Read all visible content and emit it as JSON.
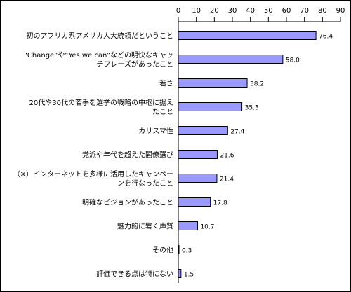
{
  "chart_data": {
    "type": "bar",
    "orientation": "horizontal",
    "title": "",
    "xlabel": "",
    "ylabel": "",
    "xlim": [
      0,
      90
    ],
    "ticks": [
      0,
      10,
      20,
      30,
      40,
      50,
      60,
      70,
      80,
      90
    ],
    "tick_labels": [
      "0",
      "10",
      "20",
      "30",
      "40",
      "50",
      "60",
      "70",
      "80",
      "90"
    ],
    "grid": false,
    "legend": "none",
    "bar_color": "#9999ff",
    "categories": [
      [
        "初のアフリカ系アメリカ人大統領だということ"
      ],
      [
        "“Change”や“Yes.we can”などの明快なキャッ",
        "チフレーズがあったこと"
      ],
      [
        "若さ"
      ],
      [
        "20代や30代の若手を選挙の戦略の中枢に据え",
        "たこと"
      ],
      [
        "カリスマ性"
      ],
      [
        "党派や年代を超えた閣僚選び"
      ],
      [
        "（※）インターネットを多様に活用したキャンペー",
        "ンを行なったこと"
      ],
      [
        "明確なビジョンがあったこと"
      ],
      [
        "魅力的に響く声質"
      ],
      [
        "その他"
      ],
      [
        "評価できる点は特にない"
      ]
    ],
    "values": [
      76.4,
      58.0,
      38.2,
      35.3,
      27.4,
      21.6,
      21.4,
      17.8,
      10.7,
      0.3,
      1.5
    ],
    "value_labels": [
      "76.4",
      "58.0",
      "38.2",
      "35.3",
      "27.4",
      "21.6",
      "21.4",
      "17.8",
      "10.7",
      "0.3",
      "1.5"
    ]
  }
}
